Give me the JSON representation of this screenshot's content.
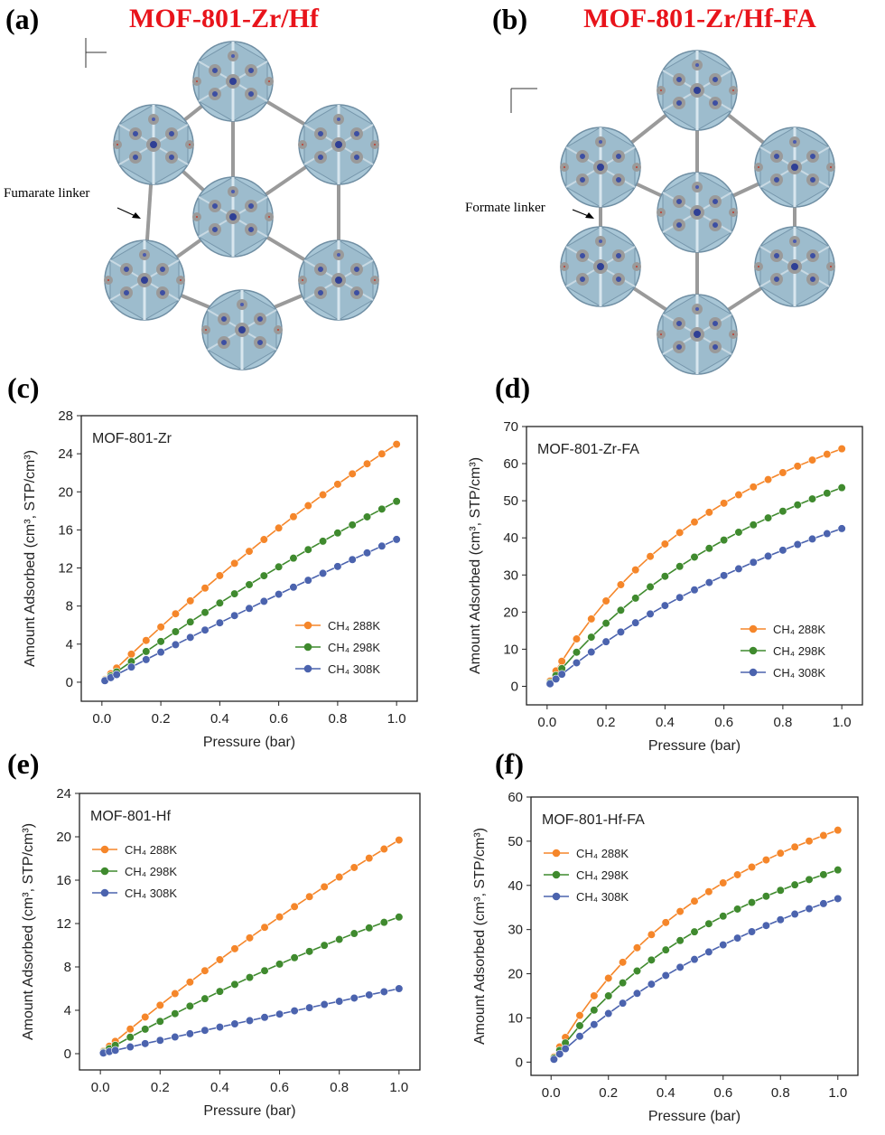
{
  "structures": [
    {
      "panel_label": "(a)",
      "title": "MOF-801-Zr/Hf",
      "annotation": "Fumarate linker"
    },
    {
      "panel_label": "(b)",
      "title": "MOF-801-Zr/Hf-FA",
      "annotation": "Formate linker"
    }
  ],
  "chart_data": [
    {
      "type": "line",
      "panel_label": "(c)",
      "title": "MOF-801-Zr",
      "x_label": "Pressure (bar)",
      "y_label": "Amount Adsorbed (cm³, STP/cm³)",
      "x": [
        0.01,
        0.03,
        0.05,
        0.1,
        0.15,
        0.2,
        0.25,
        0.3,
        0.35,
        0.4,
        0.45,
        0.5,
        0.55,
        0.6,
        0.65,
        0.7,
        0.75,
        0.8,
        0.85,
        0.9,
        0.95,
        1.0
      ],
      "series": [
        {
          "name": "CH₄ 288K",
          "color": "#f5862a",
          "values": [
            0.3,
            0.9,
            1.49,
            2.95,
            4.39,
            5.8,
            7.19,
            8.55,
            9.89,
            11.2,
            12.49,
            13.75,
            14.99,
            16.2,
            17.39,
            18.55,
            19.69,
            20.8,
            21.89,
            22.95,
            23.99,
            25.0
          ]
        },
        {
          "name": "CH₄ 298K",
          "color": "#3f8a2e",
          "values": [
            0.22,
            0.66,
            1.09,
            2.17,
            3.23,
            4.28,
            5.31,
            6.33,
            7.33,
            8.32,
            9.29,
            10.25,
            11.19,
            12.12,
            13.03,
            13.93,
            14.81,
            15.68,
            16.53,
            17.37,
            18.19,
            19.0
          ]
        },
        {
          "name": "CH₄ 308K",
          "color": "#4b63ae",
          "values": [
            0.16,
            0.48,
            0.8,
            1.59,
            2.38,
            3.16,
            3.94,
            4.71,
            5.48,
            6.24,
            7.0,
            7.75,
            8.5,
            9.24,
            9.98,
            10.71,
            11.44,
            12.16,
            12.88,
            13.59,
            14.3,
            15.0
          ]
        }
      ],
      "xlim": [
        -0.07,
        1.07
      ],
      "ylim": [
        -2,
        28
      ],
      "xticks": [
        {
          "value": 0,
          "label": "0.0"
        },
        0.2,
        0.4,
        0.6,
        0.8,
        {
          "value": 1,
          "label": "1.0"
        }
      ],
      "yticks": [
        0,
        4,
        8,
        12,
        16,
        20,
        24,
        28
      ],
      "legend": "lower right"
    },
    {
      "type": "line",
      "panel_label": "(d)",
      "title": "MOF-801-Zr-FA",
      "x_label": "Pressure (bar)",
      "y_label": "Amount Adsorbed (cm³, STP/cm³)",
      "x": [
        0.01,
        0.03,
        0.05,
        0.1,
        0.15,
        0.2,
        0.25,
        0.3,
        0.35,
        0.4,
        0.45,
        0.5,
        0.55,
        0.6,
        0.65,
        0.7,
        0.75,
        0.8,
        0.85,
        0.9,
        0.95,
        1.0
      ],
      "series": [
        {
          "name": "CH₄ 288K",
          "color": "#f5862a",
          "values": [
            1.42,
            4.15,
            6.76,
            12.77,
            18.15,
            23.0,
            27.38,
            31.37,
            35.01,
            38.35,
            41.43,
            44.27,
            46.89,
            49.34,
            51.61,
            53.73,
            55.72,
            57.58,
            59.33,
            60.97,
            62.53,
            64.0
          ]
        },
        {
          "name": "CH₄ 298K",
          "color": "#3f8a2e",
          "values": [
            0.99,
            2.92,
            4.78,
            9.18,
            13.24,
            17.0,
            20.5,
            23.76,
            26.8,
            29.65,
            32.31,
            34.82,
            37.18,
            39.41,
            41.52,
            43.51,
            45.39,
            47.18,
            48.88,
            50.5,
            52.04,
            53.52
          ]
        },
        {
          "name": "CH₄ 308K",
          "color": "#4b63ae",
          "values": [
            0.67,
            1.97,
            3.25,
            6.33,
            9.24,
            12.0,
            14.63,
            17.12,
            19.5,
            21.76,
            23.93,
            25.99,
            27.97,
            29.86,
            31.67,
            33.41,
            35.08,
            36.68,
            38.22,
            39.7,
            41.13,
            42.5
          ]
        }
      ],
      "xlim": [
        -0.07,
        1.07
      ],
      "ylim": [
        -5,
        70
      ],
      "xticks": [
        {
          "value": 0,
          "label": "0.0"
        },
        0.2,
        0.4,
        0.6,
        0.8,
        {
          "value": 1,
          "label": "1.0"
        }
      ],
      "yticks": [
        0,
        10,
        20,
        30,
        40,
        50,
        60,
        70
      ],
      "legend": "lower right"
    },
    {
      "type": "line",
      "panel_label": "(e)",
      "title": "MOF-801-Hf",
      "x_label": "Pressure (bar)",
      "y_label": "Amount Adsorbed (cm³, STP/cm³)",
      "x": [
        0.01,
        0.03,
        0.05,
        0.1,
        0.15,
        0.2,
        0.25,
        0.3,
        0.35,
        0.4,
        0.45,
        0.5,
        0.55,
        0.6,
        0.65,
        0.7,
        0.75,
        0.8,
        0.85,
        0.9,
        0.95,
        1.0
      ],
      "series": [
        {
          "name": "CH₄ 288K",
          "color": "#f5862a",
          "values": [
            0.23,
            0.69,
            1.14,
            2.27,
            3.38,
            4.47,
            5.54,
            6.6,
            7.65,
            8.67,
            9.68,
            10.68,
            11.65,
            12.61,
            13.56,
            14.48,
            15.39,
            16.29,
            17.17,
            18.03,
            18.87,
            19.7
          ]
        },
        {
          "name": "CH₄ 298K",
          "color": "#3f8a2e",
          "values": [
            0.15,
            0.46,
            0.77,
            1.52,
            2.26,
            2.98,
            3.69,
            4.39,
            5.07,
            5.74,
            6.39,
            7.03,
            7.65,
            8.26,
            8.85,
            9.43,
            9.99,
            10.54,
            11.08,
            11.6,
            12.11,
            12.6
          ]
        },
        {
          "name": "CH₄ 308K",
          "color": "#4b63ae",
          "values": [
            0.06,
            0.19,
            0.31,
            0.62,
            0.93,
            1.23,
            1.54,
            1.84,
            2.15,
            2.45,
            2.75,
            3.05,
            3.35,
            3.65,
            3.95,
            4.24,
            4.54,
            4.83,
            5.13,
            5.42,
            5.71,
            6.0
          ]
        }
      ],
      "xlim": [
        -0.07,
        1.07
      ],
      "ylim": [
        -1.5,
        24
      ],
      "xticks": [
        {
          "value": 0,
          "label": "0.0"
        },
        0.2,
        0.4,
        0.6,
        0.8,
        {
          "value": 1,
          "label": "1.0"
        }
      ],
      "yticks": [
        0,
        4,
        8,
        12,
        16,
        20,
        24
      ],
      "legend": "upper left"
    },
    {
      "type": "line",
      "panel_label": "(f)",
      "title": "MOF-801-Hf-FA",
      "x_label": "Pressure (bar)",
      "y_label": "Amount Adsorbed (cm³, STP/cm³)",
      "x": [
        0.01,
        0.03,
        0.05,
        0.1,
        0.15,
        0.2,
        0.25,
        0.3,
        0.35,
        0.4,
        0.45,
        0.5,
        0.55,
        0.6,
        0.65,
        0.7,
        0.75,
        0.8,
        0.85,
        0.9,
        0.95,
        1.0
      ],
      "series": [
        {
          "name": "CH₄ 288K",
          "color": "#f5862a",
          "values": [
            1.18,
            3.44,
            5.6,
            10.57,
            15.01,
            19.0,
            22.6,
            25.88,
            28.86,
            31.6,
            34.11,
            36.43,
            38.58,
            40.57,
            42.42,
            44.15,
            45.77,
            47.28,
            48.7,
            50.04,
            51.3,
            52.5
          ]
        },
        {
          "name": "CH₄ 298K",
          "color": "#3f8a2e",
          "values": [
            0.91,
            2.66,
            4.34,
            8.25,
            11.78,
            15.0,
            17.94,
            20.63,
            23.11,
            25.4,
            27.52,
            29.49,
            31.32,
            33.04,
            34.64,
            36.14,
            37.55,
            38.88,
            40.13,
            41.32,
            42.44,
            43.5
          ]
        },
        {
          "name": "CH₄ 308K",
          "color": "#4b63ae",
          "values": [
            0.62,
            1.84,
            3.03,
            5.85,
            8.51,
            11.0,
            13.34,
            15.55,
            17.64,
            19.61,
            21.48,
            23.25,
            24.94,
            26.54,
            28.07,
            29.52,
            30.91,
            32.23,
            33.5,
            34.72,
            35.88,
            37.0
          ]
        }
      ],
      "xlim": [
        -0.07,
        1.07
      ],
      "ylim": [
        -3,
        60
      ],
      "xticks": [
        {
          "value": 0,
          "label": "0.0"
        },
        0.2,
        0.4,
        0.6,
        0.8,
        {
          "value": 1,
          "label": "1.0"
        }
      ],
      "yticks": [
        0,
        10,
        20,
        30,
        40,
        50,
        60
      ],
      "legend": "upper left"
    }
  ]
}
